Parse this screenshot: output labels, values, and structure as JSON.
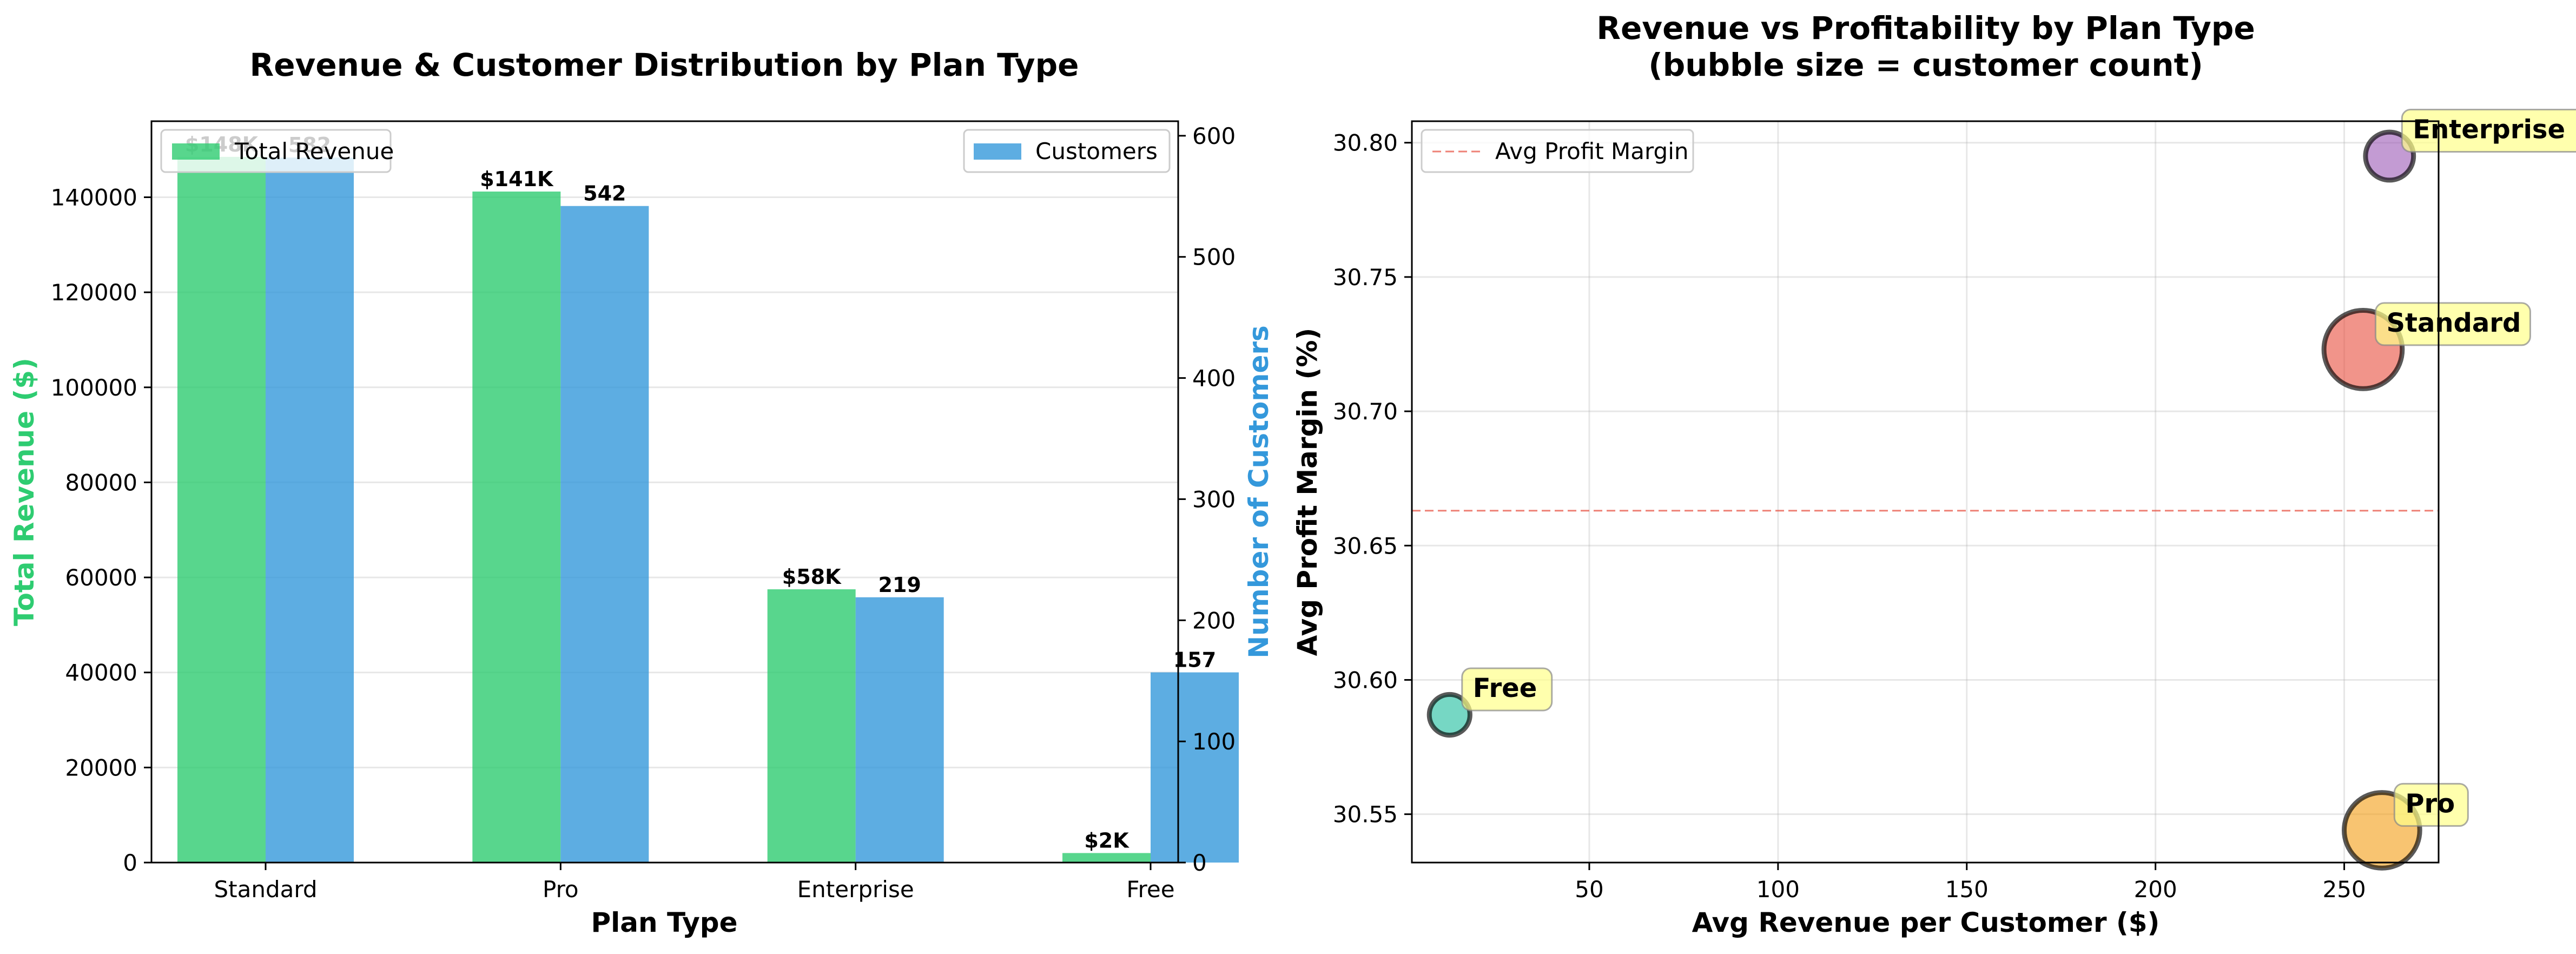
{
  "chart_data": [
    {
      "type": "bar",
      "title": "Revenue & Customer Distribution by Plan Type",
      "xlabel": "Plan Type",
      "ylabel": "Total Revenue ($)",
      "y2label": "Number of Customers",
      "categories": [
        "Standard",
        "Pro",
        "Enterprise",
        "Free"
      ],
      "ylim": [
        0,
        156000
      ],
      "y2lim": [
        0,
        612
      ],
      "yticks": [
        "0",
        "20000",
        "40000",
        "60000",
        "80000",
        "100000",
        "120000",
        "140000"
      ],
      "ytick_values": [
        0,
        20000,
        40000,
        60000,
        80000,
        100000,
        120000,
        140000
      ],
      "y2ticks": [
        "0",
        "100",
        "200",
        "300",
        "400",
        "500",
        "600"
      ],
      "y2tick_values": [
        0,
        100,
        200,
        300,
        400,
        500,
        600
      ],
      "grid": true,
      "series": [
        {
          "name": "Total Revenue",
          "axis": "left",
          "color": "#2ecc71",
          "values": [
            148500,
            141200,
            57500,
            2000
          ],
          "labels": [
            "$148K",
            "$141K",
            "$58K",
            "$2K"
          ]
        },
        {
          "name": "Customers",
          "axis": "right",
          "color": "#3498db",
          "values": [
            582,
            542,
            219,
            157
          ],
          "labels": [
            "582",
            "542",
            "219",
            "157"
          ]
        }
      ],
      "legend_left": "upper-left",
      "legend_right": "upper-right"
    },
    {
      "type": "scatter",
      "title": "Revenue vs Profitability by Plan Type",
      "subtitle": "(bubble size = customer count)",
      "xlabel": "Avg Revenue per Customer ($)",
      "ylabel": "Avg Profit Margin (%)",
      "xlim": [
        3,
        275
      ],
      "ylim": [
        30.532,
        30.808
      ],
      "xticks": [
        "50",
        "100",
        "150",
        "200",
        "250"
      ],
      "xtick_values": [
        50,
        100,
        150,
        200,
        250
      ],
      "yticks": [
        "30.55",
        "30.60",
        "30.65",
        "30.70",
        "30.75",
        "30.80"
      ],
      "ytick_values": [
        30.55,
        30.6,
        30.65,
        30.7,
        30.75,
        30.8
      ],
      "grid": true,
      "reference_line": {
        "label": "Avg Profit Margin",
        "y": 30.663,
        "color": "#e74c3c"
      },
      "points": [
        {
          "label": "Standard",
          "x": 255,
          "y": 30.723,
          "size": 582,
          "color": "#e74c3c"
        },
        {
          "label": "Pro",
          "x": 260,
          "y": 30.544,
          "size": 542,
          "color": "#f39c12"
        },
        {
          "label": "Enterprise",
          "x": 262,
          "y": 30.795,
          "size": 219,
          "color": "#9b59b6"
        },
        {
          "label": "Free",
          "x": 13,
          "y": 30.587,
          "size": 157,
          "color": "#1abc9c"
        }
      ],
      "legend": "upper-left"
    }
  ]
}
